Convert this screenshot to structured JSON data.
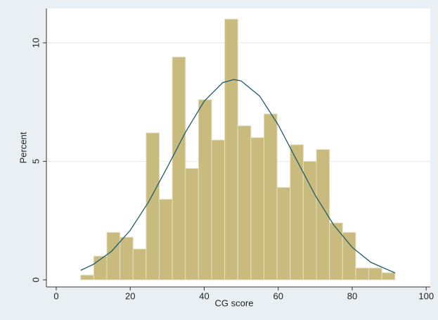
{
  "chart_data": {
    "type": "histogram",
    "x_label": "CG score",
    "y_label": "Percent",
    "bins": [
      6.6,
      10.14,
      13.68,
      17.22,
      20.76,
      24.3,
      27.84,
      31.38,
      34.92,
      38.46,
      42.0,
      45.54,
      49.08,
      52.62,
      56.16,
      59.7,
      63.24,
      66.78,
      70.32,
      73.86,
      77.4,
      80.94,
      84.48,
      88.02,
      91.56
    ],
    "values": [
      0.2,
      1.0,
      2.0,
      1.8,
      1.3,
      6.2,
      3.4,
      9.4,
      4.7,
      7.6,
      5.9,
      11.0,
      6.5,
      6.0,
      7.0,
      3.9,
      5.7,
      5.0,
      5.5,
      2.4,
      2.0,
      0.5,
      0.5,
      0.3
    ],
    "color": "#c9bb7e",
    "density": {
      "color": "#1f5c6b",
      "x": [
        6.6,
        10,
        15,
        20,
        25,
        30,
        35,
        40,
        45,
        48,
        50,
        55,
        60,
        65,
        70,
        75,
        80,
        85,
        91.6
      ],
      "values": [
        0.4,
        0.65,
        1.21,
        2.09,
        3.3,
        4.75,
        6.25,
        7.54,
        8.32,
        8.45,
        8.39,
        7.75,
        6.54,
        5.05,
        3.57,
        2.31,
        1.37,
        0.74,
        0.29
      ]
    },
    "xlim": [
      -2.66,
      101.1
    ],
    "ylim": [
      -0.3,
      11.45
    ],
    "xticks": [
      0,
      20,
      40,
      60,
      80,
      100
    ],
    "yticks": [
      0,
      5,
      10
    ],
    "grid": true
  }
}
